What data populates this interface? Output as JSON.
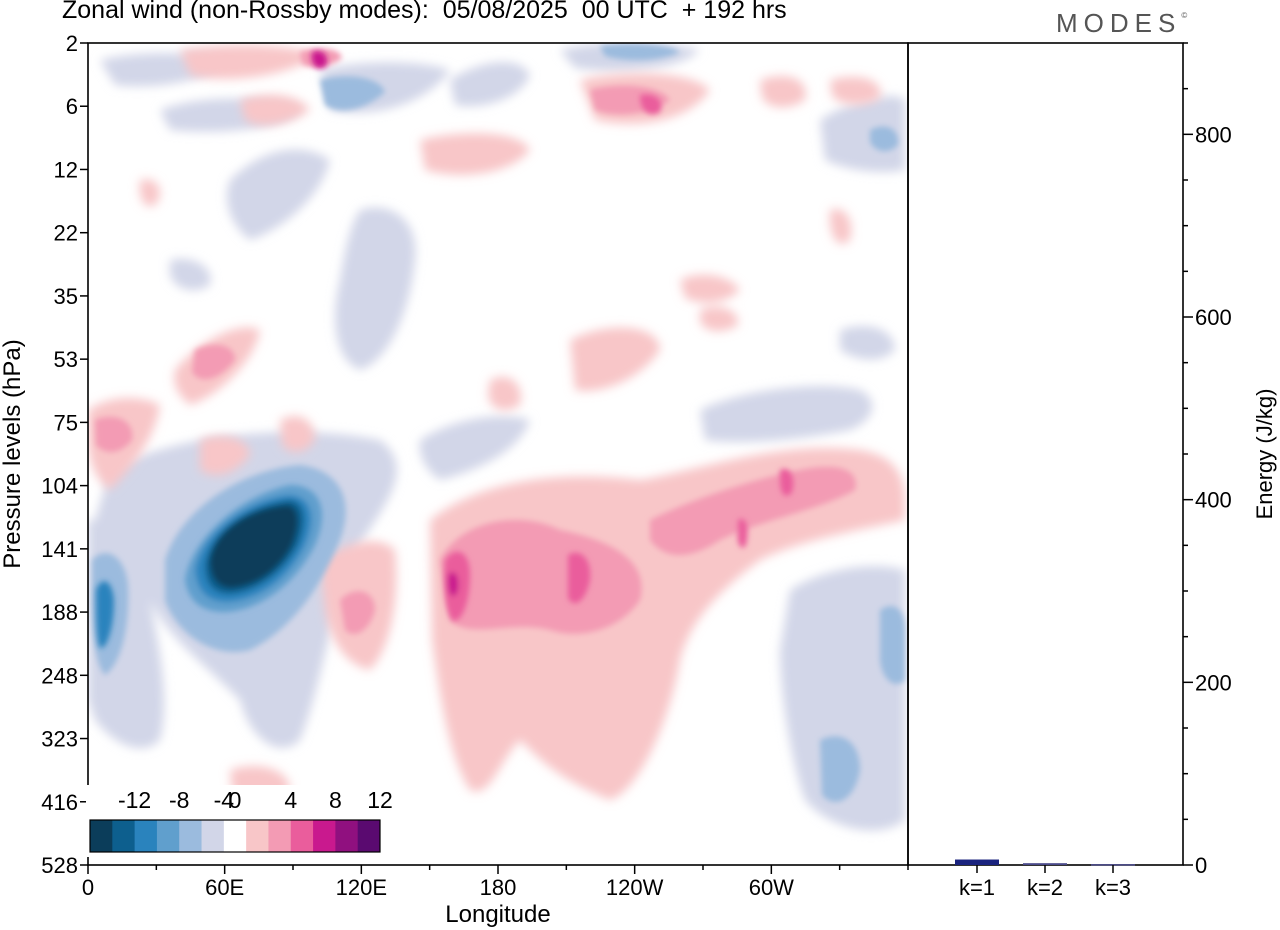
{
  "title": "Zonal wind (non-Rossby modes):  05/08/2025  00 UTC  + 192 hrs",
  "brand": {
    "text": "MODES",
    "mark": "©"
  },
  "chart_data": [
    {
      "type": "heatmap",
      "title": "Zonal wind (non-Rossby modes)",
      "xlabel": "Longitude",
      "ylabel": "Pressure levels (hPa)",
      "x_ticks": [
        "0",
        "60E",
        "120E",
        "180",
        "120W",
        "60W"
      ],
      "x_range_deg": [
        0,
        360
      ],
      "y_ticks": [
        "2",
        "6",
        "12",
        "22",
        "35",
        "53",
        "75",
        "104",
        "141",
        "188",
        "248",
        "323",
        "416",
        "528"
      ],
      "colorbar": {
        "tick_labels": [
          "-12",
          "-8",
          "-4",
          "0",
          "4",
          "8",
          "12"
        ],
        "levels": [
          -14,
          -12,
          -10,
          -8,
          -6,
          -4,
          -2,
          2,
          4,
          6,
          8,
          10,
          12,
          14
        ],
        "colors": [
          "#0b3d5a",
          "#0d5f8e",
          "#2a83bd",
          "#609fcd",
          "#9bbbde",
          "#d2d6e8",
          "#ffffff",
          "#f8c6c8",
          "#f39bb4",
          "#ea5d9c",
          "#c9198e",
          "#90107f",
          "#5a0a70"
        ]
      },
      "features": [
        {
          "lon": 60,
          "level": "141",
          "value": -14
        },
        {
          "lon": 5,
          "level": "188",
          "value": -10
        },
        {
          "lon": 162,
          "level": "141",
          "value": 10
        },
        {
          "lon": 207,
          "level": "141",
          "value": 8
        },
        {
          "lon": 309,
          "level": "104",
          "value": 8
        }
      ]
    },
    {
      "type": "bar",
      "categories": [
        "k=1",
        "k=2",
        "k=3"
      ],
      "values": [
        6,
        2,
        1
      ],
      "ylabel": "Energy (J/kg)",
      "y_ticks": [
        "0",
        "200",
        "400",
        "600",
        "800"
      ],
      "ylim": [
        0,
        900
      ]
    }
  ]
}
